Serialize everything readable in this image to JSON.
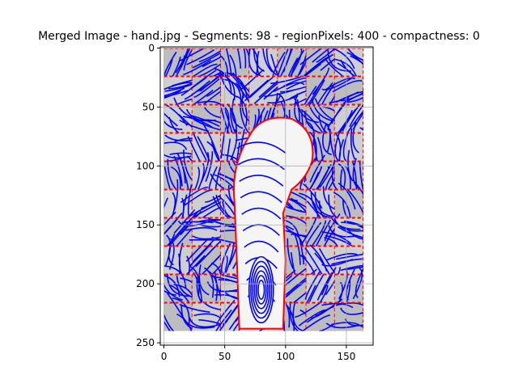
{
  "chart_data": {
    "type": "image",
    "title": "Merged Image - hand.jpg - Segments: 98 - regionPixels: 400 - compactness: 0",
    "xlabel": "",
    "ylabel": "",
    "x_ticks": [
      0,
      50,
      100,
      150
    ],
    "y_ticks": [
      0,
      50,
      100,
      150,
      200,
      250
    ],
    "xlim": [
      -3,
      172
    ],
    "ylim": [
      252,
      -1
    ],
    "image_extent": {
      "width": 164,
      "height": 240
    },
    "grid": true,
    "colors": {
      "background_gray": "#bdbdbd",
      "light_gray": "#cfcfcf",
      "white_region": "#f5f5f5",
      "streamline": "#0000ff",
      "boundary": "#ff0000",
      "grid": "#b0b0b0",
      "axis": "#000000"
    },
    "segments_shown": 98
  }
}
